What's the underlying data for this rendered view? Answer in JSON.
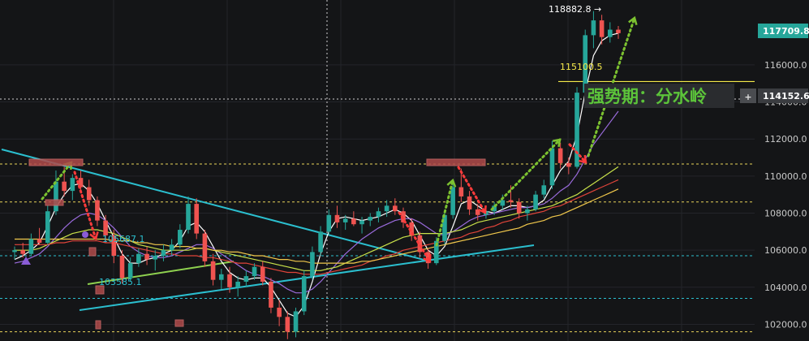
{
  "chart_data": {
    "type": "candlestick",
    "y_axis": {
      "ticks": [
        102000.0,
        104000.0,
        106000.0,
        108000.0,
        110000.0,
        112000.0,
        114000.0,
        116000.0
      ],
      "tick_labels": [
        "102000.0",
        "104000.0",
        "106000.0",
        "108000.0",
        "110000.0",
        "112000.0",
        "114000.0",
        "116000.0"
      ],
      "range": [
        101100,
        119500
      ],
      "position": "right"
    },
    "current_price": {
      "label": "117709.8",
      "value": 117709.8,
      "color": "#26a69a"
    },
    "crosshair_price": {
      "label": "114152.6",
      "value": 114152.6
    },
    "high_annotation": {
      "label": "118882.8 →",
      "value": 118882.8
    },
    "resistance": {
      "label": "115100.5",
      "value": 115100.5,
      "color": "#f5e94a"
    },
    "point_labels": [
      {
        "text": "105687.1",
        "value": 105687.1
      },
      {
        "text": "103585.1",
        "value": 103585.1
      }
    ],
    "dashed_levels": [
      {
        "value": 110650,
        "color": "#e8d45a"
      },
      {
        "value": 108600,
        "color": "#e8d45a"
      },
      {
        "value": 105700,
        "color": "#2bbfcf"
      },
      {
        "value": 103400,
        "color": "#2bbfcf"
      },
      {
        "value": 101600,
        "color": "#e8d45a"
      }
    ],
    "candles_ohlc": [
      [
        105900,
        106200,
        105500,
        106000
      ],
      [
        106000,
        106400,
        105600,
        105800
      ],
      [
        105800,
        106900,
        105700,
        106600
      ],
      [
        106600,
        107200,
        106300,
        106400
      ],
      [
        106400,
        108400,
        106300,
        108100
      ],
      [
        108100,
        110300,
        107900,
        109700
      ],
      [
        109700,
        110500,
        108900,
        109200
      ],
      [
        109200,
        110100,
        108700,
        109900
      ],
      [
        109900,
        110300,
        109100,
        109400
      ],
      [
        109400,
        109800,
        108400,
        108700
      ],
      [
        108700,
        108900,
        107300,
        107600
      ],
      [
        107600,
        107900,
        106400,
        106800
      ],
      [
        106800,
        107100,
        105300,
        105700
      ],
      [
        105700,
        106000,
        104200,
        104500
      ],
      [
        104500,
        105600,
        104300,
        105300
      ],
      [
        105300,
        106100,
        105100,
        105800
      ],
      [
        105800,
        106200,
        105200,
        105500
      ],
      [
        105500,
        106000,
        104900,
        105700
      ],
      [
        105700,
        106300,
        105400,
        106000
      ],
      [
        106000,
        106600,
        105700,
        106300
      ],
      [
        106300,
        107400,
        106100,
        107100
      ],
      [
        107100,
        108900,
        106900,
        108500
      ],
      [
        108500,
        108800,
        106600,
        106900
      ],
      [
        106900,
        107100,
        105100,
        105400
      ],
      [
        105400,
        105800,
        104100,
        104400
      ],
      [
        104400,
        105000,
        103900,
        104700
      ],
      [
        104700,
        105100,
        103700,
        104000
      ],
      [
        104000,
        104600,
        103500,
        104300
      ],
      [
        104300,
        104900,
        104000,
        104600
      ],
      [
        104600,
        105300,
        104400,
        105100
      ],
      [
        105100,
        105400,
        104100,
        104300
      ],
      [
        104300,
        104500,
        102600,
        102900
      ],
      [
        102900,
        103300,
        101900,
        102400
      ],
      [
        102400,
        102700,
        101200,
        101600
      ],
      [
        101600,
        102900,
        101300,
        102700
      ],
      [
        102700,
        104900,
        102500,
        104600
      ],
      [
        104600,
        106200,
        104400,
        105900
      ],
      [
        105900,
        107300,
        105700,
        107000
      ],
      [
        107000,
        108200,
        106800,
        107900
      ],
      [
        107900,
        108400,
        107200,
        107500
      ],
      [
        107500,
        107900,
        107100,
        107700
      ],
      [
        107700,
        108100,
        107300,
        107400
      ],
      [
        107400,
        107800,
        106900,
        107600
      ],
      [
        107600,
        108000,
        107300,
        107800
      ],
      [
        107800,
        108300,
        107500,
        108100
      ],
      [
        108100,
        108700,
        107800,
        108400
      ],
      [
        108400,
        108800,
        107900,
        108100
      ],
      [
        108100,
        108300,
        107200,
        107500
      ],
      [
        107500,
        107700,
        106500,
        106800
      ],
      [
        106800,
        107000,
        105600,
        105900
      ],
      [
        105900,
        106100,
        105000,
        105300
      ],
      [
        105300,
        106700,
        105200,
        106500
      ],
      [
        106500,
        108200,
        106300,
        107900
      ],
      [
        107900,
        109700,
        107700,
        109400
      ],
      [
        109400,
        110400,
        108600,
        108900
      ],
      [
        108900,
        109200,
        107900,
        108200
      ],
      [
        108200,
        108500,
        107600,
        107900
      ],
      [
        107900,
        108300,
        107700,
        108100
      ],
      [
        108100,
        108600,
        107900,
        108400
      ],
      [
        108400,
        109000,
        108200,
        108700
      ],
      [
        108700,
        109500,
        108300,
        108600
      ],
      [
        108600,
        108800,
        107700,
        108000
      ],
      [
        108000,
        108400,
        107600,
        108200
      ],
      [
        108200,
        109200,
        108100,
        109000
      ],
      [
        109000,
        109800,
        108800,
        109500
      ],
      [
        109500,
        111900,
        109300,
        111500
      ],
      [
        111500,
        111800,
        110400,
        110700
      ],
      [
        110700,
        111000,
        110100,
        110500
      ],
      [
        110500,
        114800,
        110400,
        114500
      ],
      [
        114500,
        117900,
        114200,
        117600
      ],
      [
        117600,
        118900,
        116900,
        118400
      ],
      [
        118400,
        118700,
        117100,
        117500
      ],
      [
        117500,
        118300,
        117200,
        117900
      ],
      [
        117900,
        118100,
        117400,
        117710
      ]
    ],
    "moving_averages": [
      {
        "color": "#ffffff",
        "values": [
          105500,
          105700,
          106000,
          106400,
          107300,
          108300,
          109000,
          109500,
          109600,
          109200,
          108500,
          107600,
          106700,
          105800,
          105300,
          105300,
          105500,
          105600,
          105800,
          106000,
          106500,
          107300,
          107500,
          107000,
          106200,
          105400,
          104800,
          104500,
          104400,
          104500,
          104500,
          104000,
          103300,
          102600,
          102400,
          103000,
          104300,
          105800,
          107000,
          107700,
          107800,
          107700,
          107600,
          107700,
          107800,
          108000,
          108200,
          108000,
          107600,
          106800,
          106000,
          105700,
          106200,
          107300,
          108500,
          108700,
          108400,
          108100,
          108000,
          108200,
          108400,
          108400,
          108300,
          108400,
          108700,
          109500,
          110300,
          110800,
          112200,
          114500,
          116500,
          117300,
          117600,
          117709
        ]
      },
      {
        "color": "#9a6bdc",
        "values": [
          105300,
          105400,
          105600,
          105800,
          106200,
          106700,
          107200,
          107600,
          107900,
          108000,
          107900,
          107600,
          107200,
          106700,
          106200,
          105900,
          105700,
          105600,
          105600,
          105700,
          105900,
          106100,
          106300,
          106300,
          106100,
          105800,
          105500,
          105200,
          104900,
          104700,
          104600,
          104400,
          104200,
          103900,
          103700,
          103700,
          103900,
          104300,
          104800,
          105300,
          105800,
          106200,
          106600,
          106900,
          107200,
          107400,
          107600,
          107700,
          107700,
          107500,
          107200,
          106900,
          106800,
          107000,
          107300,
          107600,
          107800,
          107900,
          108000,
          108100,
          108200,
          108300,
          108300,
          108400,
          108500,
          108800,
          109200,
          109500,
          110100,
          110900,
          111700,
          112300,
          112900,
          113500
        ]
      },
      {
        "color": "#c9e24a",
        "values": [
          106000,
          106000,
          106000,
          106100,
          106300,
          106500,
          106700,
          106900,
          107000,
          107100,
          107100,
          107000,
          106900,
          106700,
          106500,
          106300,
          106200,
          106100,
          106000,
          106000,
          106000,
          106000,
          106100,
          106100,
          106000,
          105900,
          105800,
          105700,
          105600,
          105500,
          105400,
          105300,
          105200,
          105100,
          105000,
          104900,
          104900,
          104900,
          105000,
          105100,
          105300,
          105500,
          105700,
          105900,
          106100,
          106300,
          106500,
          106700,
          106800,
          106900,
          106900,
          106900,
          106900,
          107000,
          107100,
          107300,
          107500,
          107600,
          107700,
          107800,
          107900,
          108000,
          108100,
          108200,
          108300,
          108400,
          108600,
          108800,
          109000,
          109300,
          109600,
          109900,
          110200,
          110500
        ]
      },
      {
        "color": "#e0443a",
        "values": [
          106300,
          106300,
          106300,
          106300,
          106300,
          106400,
          106400,
          106500,
          106500,
          106500,
          106500,
          106400,
          106400,
          106300,
          106200,
          106100,
          106000,
          105900,
          105800,
          105800,
          105700,
          105700,
          105700,
          105600,
          105600,
          105500,
          105400,
          105300,
          105300,
          105200,
          105100,
          105000,
          104900,
          104800,
          104800,
          104700,
          104700,
          104700,
          104800,
          104900,
          105000,
          105100,
          105200,
          105400,
          105500,
          105700,
          105800,
          106000,
          106100,
          106200,
          106300,
          106400,
          106500,
          106600,
          106700,
          106900,
          107000,
          107200,
          107300,
          107500,
          107600,
          107800,
          107900,
          108000,
          108100,
          108300,
          108400,
          108600,
          108800,
          109000,
          109200,
          109400,
          109600,
          109800
        ]
      },
      {
        "color": "#f2c94c",
        "values": [
          106600,
          106600,
          106600,
          106600,
          106600,
          106600,
          106600,
          106600,
          106600,
          106600,
          106600,
          106600,
          106500,
          106500,
          106500,
          106400,
          106400,
          106300,
          106300,
          106200,
          106200,
          106200,
          106100,
          106100,
          106000,
          106000,
          105900,
          105900,
          105800,
          105700,
          105700,
          105600,
          105500,
          105500,
          105400,
          105400,
          105300,
          105300,
          105300,
          105300,
          105300,
          105300,
          105400,
          105400,
          105500,
          105600,
          105700,
          105800,
          105900,
          106000,
          106100,
          106200,
          106300,
          106400,
          106500,
          106600,
          106700,
          106800,
          106900,
          107000,
          107100,
          107200,
          107400,
          107500,
          107600,
          107800,
          107900,
          108100,
          108300,
          108500,
          108700,
          108900,
          109100,
          109300
        ]
      }
    ]
  },
  "labels": {
    "high": "118882.8 →",
    "resistance": "115100.5",
    "point_a": "105687.1",
    "point_b": "103585.1",
    "crosshair_price": "114152.6",
    "current_price": "117709.8",
    "watershed": "强势期：分水岭",
    "plus": "+"
  },
  "colors": {
    "bg": "#141517",
    "up": "#26a69a",
    "down": "#ef5350",
    "trendline": "#2bbfcf",
    "channel": "#8fd14f",
    "arrow_up": "#7cc230",
    "arrow_down": "#ff3b3b",
    "watershed_text": "#5cc43a",
    "resistance": "#f5e94a"
  }
}
